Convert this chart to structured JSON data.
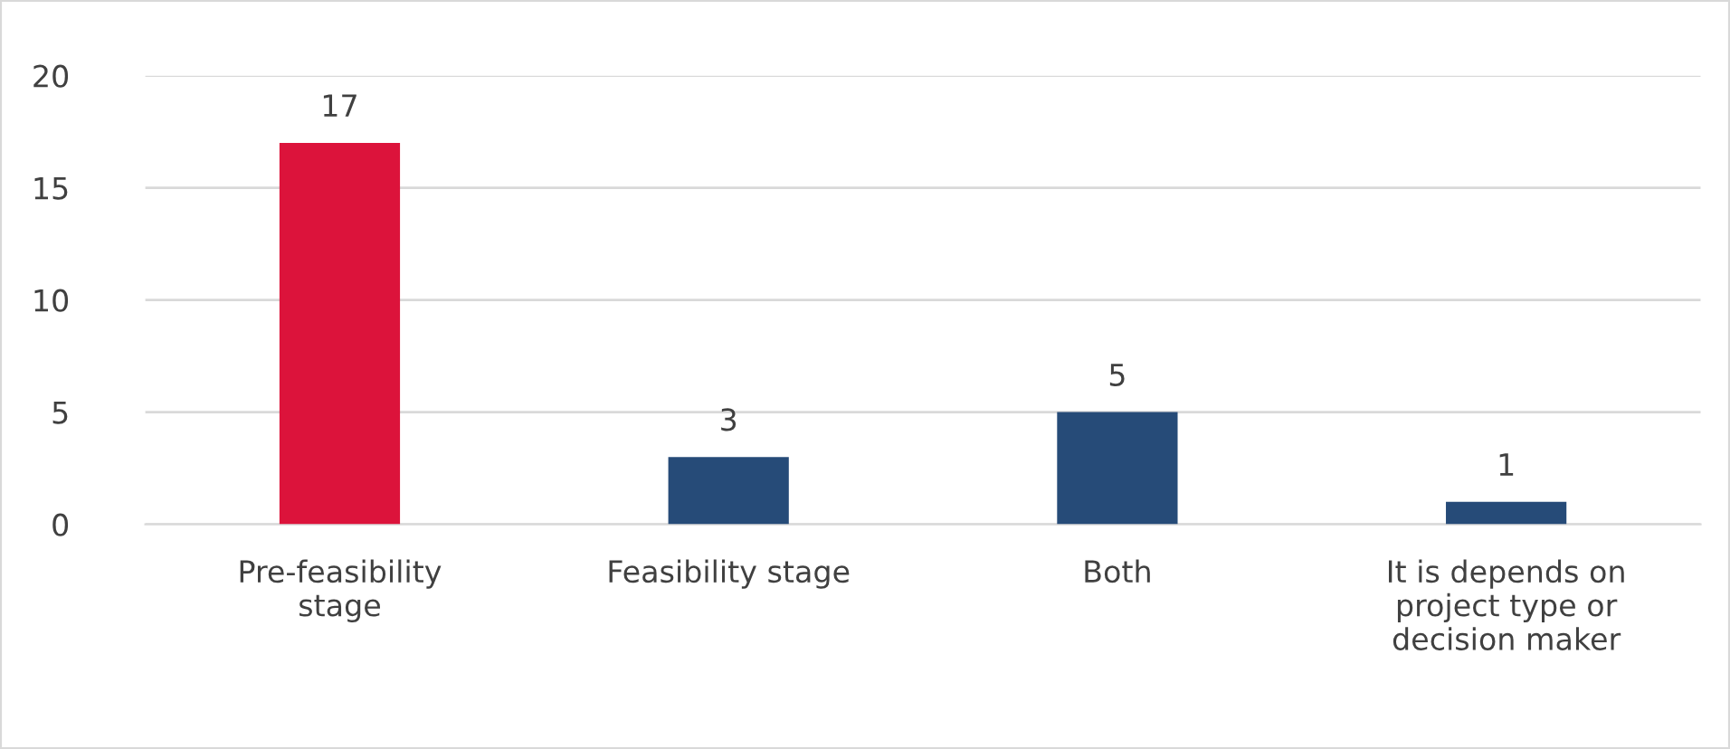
{
  "chart_data": {
    "type": "bar",
    "categories": [
      "Pre-feasibility\nstage",
      "Feasibility stage",
      "Both",
      "It is depends on\nproject type or\ndecision maker"
    ],
    "values": [
      17,
      3,
      5,
      1
    ],
    "colors": [
      "#dc133b",
      "#264b78",
      "#264b78",
      "#264b78"
    ],
    "ylim": [
      0,
      20
    ],
    "yticks": [
      0,
      5,
      10,
      15,
      20
    ],
    "grid": "y",
    "data_labels": true
  }
}
